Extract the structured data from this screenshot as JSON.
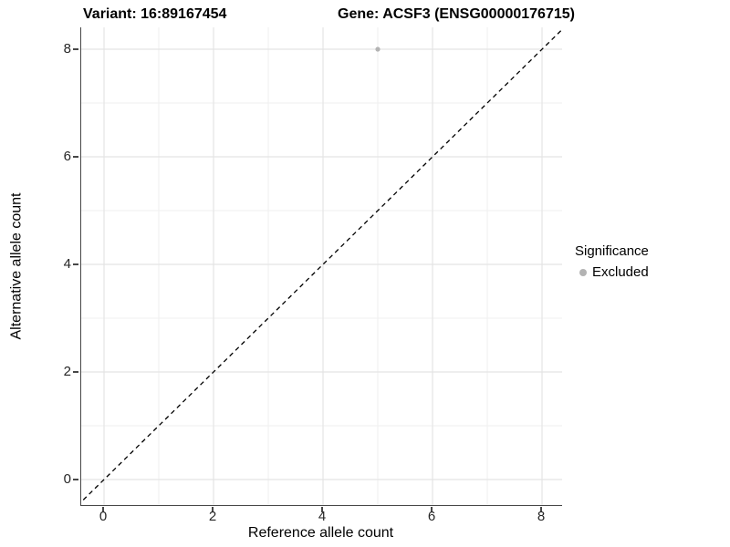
{
  "titles": {
    "variant": "Variant: 16:89167454",
    "gene": "Gene: ACSF3 (ENSG00000176715)"
  },
  "axes": {
    "x": {
      "label": "Reference allele count",
      "tick_labels": [
        "0",
        "2",
        "4",
        "6",
        "8"
      ]
    },
    "y": {
      "label": "Alternative allele count",
      "tick_labels": [
        "0",
        "2",
        "4",
        "6",
        "8"
      ]
    }
  },
  "legend": {
    "title": "Significance",
    "items": [
      {
        "label": "Excluded",
        "color": "#b3b3b3"
      }
    ]
  },
  "colors": {
    "point": "#b3b3b3",
    "reference_line": "#000000",
    "grid_major": "#e4e4e4",
    "grid_minor": "#efefef",
    "axis_line": "#474747",
    "tick_text": "#262626"
  },
  "chart_data": {
    "type": "scatter",
    "title": "Variant: 16:89167454 — Gene: ACSF3 (ENSG00000176715)",
    "xlabel": "Reference allele count",
    "ylabel": "Alternative allele count",
    "x_ticks": [
      0,
      2,
      4,
      6,
      8
    ],
    "y_ticks": [
      0,
      2,
      4,
      6,
      8
    ],
    "xlim": [
      -0.42,
      8.37
    ],
    "ylim": [
      -0.47,
      8.41
    ],
    "grid": "major+minor",
    "legend_position": "right",
    "series": [
      {
        "name": "Excluded",
        "color": "#b3b3b3",
        "points": [
          {
            "x": 5,
            "y": 8
          }
        ]
      }
    ],
    "reference_line": {
      "style": "dashed",
      "equation": "y = x",
      "intercept": 0,
      "slope": 1
    }
  }
}
